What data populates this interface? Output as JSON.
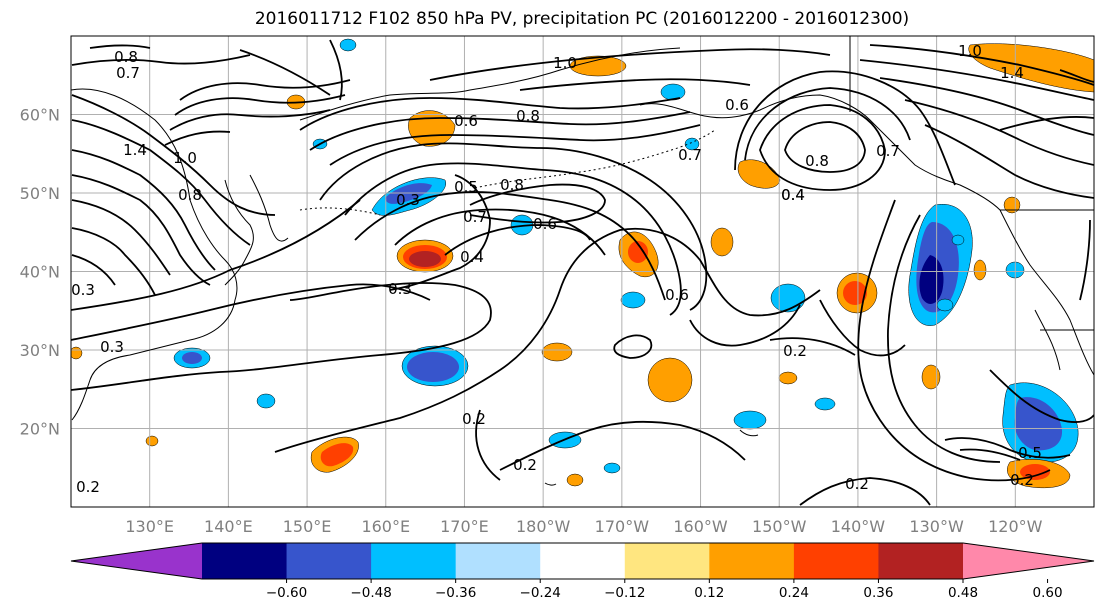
{
  "title": "2016011712 F102 850 hPa PV, precipitation PC (2016012200 - 2016012300)",
  "map": {
    "lat_labels": [
      {
        "text": "60°N",
        "lat": 60
      },
      {
        "text": "50°N",
        "lat": 50
      },
      {
        "text": "40°N",
        "lat": 40
      },
      {
        "text": "30°N",
        "lat": 30
      },
      {
        "text": "20°N",
        "lat": 20
      }
    ],
    "lon_labels": [
      {
        "text": "130°E",
        "lon": 130
      },
      {
        "text": "140°E",
        "lon": 140
      },
      {
        "text": "150°E",
        "lon": 150
      },
      {
        "text": "160°E",
        "lon": 160
      },
      {
        "text": "170°E",
        "lon": 170
      },
      {
        "text": "180°W",
        "lon": 180
      },
      {
        "text": "170°W",
        "lon": 190
      },
      {
        "text": "160°W",
        "lon": 200
      },
      {
        "text": "150°W",
        "lon": 210
      },
      {
        "text": "140°W",
        "lon": 220
      },
      {
        "text": "130°W",
        "lon": 230
      },
      {
        "text": "120°W",
        "lon": 240
      }
    ],
    "extent": {
      "lon_min": 120,
      "lon_max": 250,
      "lat_min": 10,
      "lat_max": 70
    },
    "gridline_color": "#b0b0b0"
  },
  "contour_labels": [
    "0.8",
    "0.7",
    "1.4",
    "1.0",
    "0.8",
    "0.3",
    "0.3",
    "0.2",
    "0.6",
    "0.8",
    "1.0",
    "0.7",
    "0.5",
    "0.3",
    "0.8",
    "0.6",
    "0.4",
    "0.7",
    "0.6",
    "0.4",
    "0.3",
    "0.6",
    "0.2",
    "0.2",
    "0.2",
    "0.8",
    "0.4",
    "0.5",
    "0.2",
    "0.2",
    "1.0",
    "1.4",
    "0.7"
  ],
  "colorbar": {
    "colors": [
      "#9933cc",
      "#000080",
      "#3755cc",
      "#00bfff",
      "#b0e0ff",
      "#ffffff",
      "#ffe680",
      "#ff9f00",
      "#ff4000",
      "#b22222",
      "#ff88aa"
    ],
    "tick_labels": [
      "−0.60",
      "−0.48",
      "−0.36",
      "−0.24",
      "−0.12",
      "0.12",
      "0.24",
      "0.36",
      "0.48",
      "0.60"
    ]
  }
}
